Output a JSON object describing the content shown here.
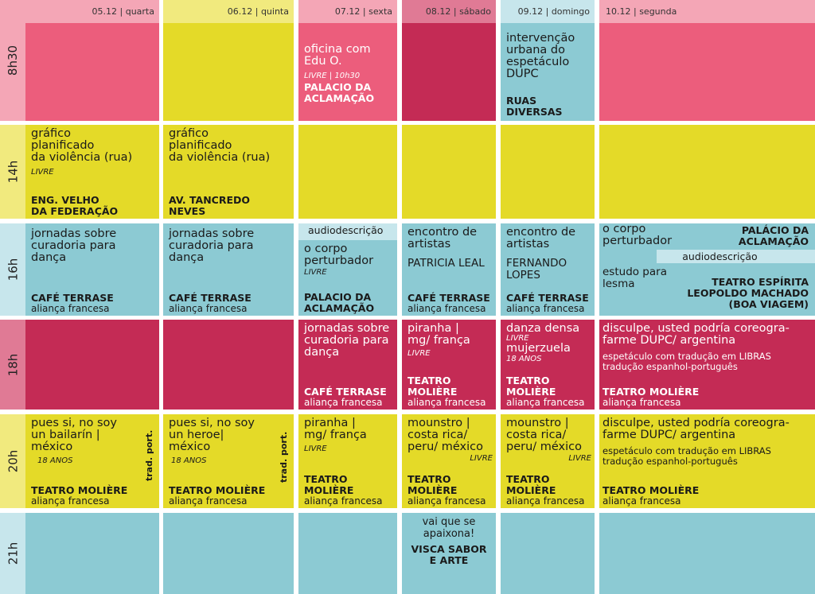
{
  "colors": {
    "pink": "#ec5d7c",
    "yellow": "#e4da28",
    "magenta": "#c42b55",
    "blue": "#8ccad3",
    "lightblue": "#bfe3e8",
    "paleyellow": "#f1ea7e",
    "palepink": "#f4a6b6",
    "paleblue": "#c7e6ec"
  },
  "days": [
    {
      "date": "05.12",
      "name": "quarta"
    },
    {
      "date": "06.12",
      "name": "quinta"
    },
    {
      "date": "07.12",
      "name": "sexta"
    },
    {
      "date": "08.12",
      "name": "sábado"
    },
    {
      "date": "09.12",
      "name": "domingo"
    },
    {
      "date": "10.12",
      "name": "segunda"
    }
  ],
  "times": [
    "8h30",
    "14h",
    "16h",
    "18h",
    "20h",
    "21h"
  ],
  "r0": {
    "c2": {
      "l1": "oficina com",
      "l2": "Edu O.",
      "livre": "LIVRE | 10h30",
      "v1": "PALACIO DA",
      "v2": "ACLAMAÇÃO"
    },
    "c4": {
      "l1": "intervenção",
      "l2": "urbana do",
      "l3": "espetáculo",
      "l4": "DUPC",
      "v1": "RUAS",
      "v2": "DIVERSAS"
    }
  },
  "r1": {
    "c0": {
      "l1": "gráfico",
      "l2": "planificado",
      "l3": "da violência (rua)",
      "livre": "LIVRE",
      "v1": "ENG. VELHO",
      "v2": "DA FEDERAÇÃO"
    },
    "c1": {
      "l1": "gráfico",
      "l2": "planificado",
      "l3": "da violência (rua)",
      "v1": "AV. TANCREDO",
      "v2": "NEVES"
    }
  },
  "r2": {
    "c0": {
      "l1": "jornadas sobre",
      "l2": "curadoria  para",
      "l3": "dança",
      "v": "CAFÉ TERRASE",
      "s": "aliança francesa"
    },
    "c1": {
      "l1": "jornadas sobre",
      "l2": "curadoria  para",
      "l3": "dança",
      "v": "CAFÉ TERRASE",
      "s": "aliança francesa"
    },
    "c2": {
      "band": "audiodescrição",
      "l1": "o corpo",
      "l2": "perturbador",
      "livre": "LIVRE",
      "v1": "PALACIO DA",
      "v2": "ACLAMAÇÃO"
    },
    "c3": {
      "l1": "encontro de",
      "l2": "artistas",
      "l3": "PATRICIA LEAL",
      "v": "CAFÉ TERRASE",
      "s": "aliança francesa"
    },
    "c4": {
      "l1": "encontro de",
      "l2": "artistas",
      "l3": "FERNANDO",
      "l4": "LOPES",
      "v": "CAFÉ TERRASE",
      "s": "aliança francesa"
    },
    "c5": {
      "l1": "o corpo",
      "l2": "perturbador",
      "v1": "PALÁCIO DA",
      "v2": "ACLAMAÇÃO",
      "band": "audiodescrição",
      "l3": "estudo para",
      "l4": "lesma",
      "v3": "TEATRO ESPÍRITA",
      "v4": "LEOPOLDO MACHADO",
      "v5": "(BOA VIAGEM)"
    }
  },
  "r3": {
    "c2": {
      "l1": "jornadas sobre",
      "l2": "curadoria  para",
      "l3": "dança",
      "v": "CAFÉ TERRASE",
      "s": "aliança francesa"
    },
    "c3": {
      "l1": "piranha |",
      "l2": "mg/ frança",
      "livre": "LIVRE",
      "v1": "TEATRO",
      "v2": "MOLIÈRE",
      "s": "aliança francesa"
    },
    "c4": {
      "l1": "danza densa",
      "livre": "LIVRE",
      "l2": "mujerzuela",
      "age": "18 ANOS",
      "v1": "TEATRO",
      "v2": "MOLIÈRE",
      "s": "aliança francesa"
    },
    "c5": {
      "l1": "disculpe, usted podría coreogra-",
      "l2": "farme DUPC/ argentina",
      "n1": "espetáculo com tradução em LIBRAS",
      "n2": "tradução espanhol-português",
      "v": "TEATRO MOLIÈRE",
      "s": "aliança francesa"
    }
  },
  "r4": {
    "c0": {
      "l1": "pues si, no soy",
      "l2": "un bailarín |",
      "l3": "méxico",
      "age": "18 ANOS",
      "v": "TEATRO MOLIÈRE",
      "s": "aliança francesa",
      "side": "trad. port."
    },
    "c1": {
      "l1": "pues si, no soy",
      "l2": "un heroe|",
      "l3": "méxico",
      "age": "18 ANOS",
      "v": "TEATRO MOLIÈRE",
      "s": "aliança francesa",
      "side": "trad. port."
    },
    "c2": {
      "l1": "piranha |",
      "l2": "mg/ frança",
      "livre": "LIVRE",
      "v1": "TEATRO",
      "v2": "MOLIÈRE",
      "s": "aliança francesa"
    },
    "c3": {
      "l1": "mounstro |",
      "l2": "costa rica/",
      "l3": "peru/ méxico",
      "livre": "LIVRE",
      "v1": "TEATRO",
      "v2": "MOLIÈRE",
      "s": "aliança francesa"
    },
    "c4": {
      "l1": "mounstro |",
      "l2": "costa rica/",
      "l3": "peru/ méxico",
      "livre": "LIVRE",
      "v1": "TEATRO",
      "v2": "MOLIÈRE",
      "s": "aliança francesa"
    },
    "c5": {
      "l1": "disculpe, usted podría coreogra-",
      "l2": "farme DUPC/ argentina",
      "n1": "espetáculo com tradução em LIBRAS",
      "n2": "tradução espanhol-português",
      "v": "TEATRO MOLIÈRE",
      "s": "aliança francesa"
    }
  },
  "r5": {
    "c3": {
      "l1": "vai que se",
      "l2": "apaixona!",
      "v1": "VISCA SABOR",
      "v2": "E ARTE"
    }
  }
}
